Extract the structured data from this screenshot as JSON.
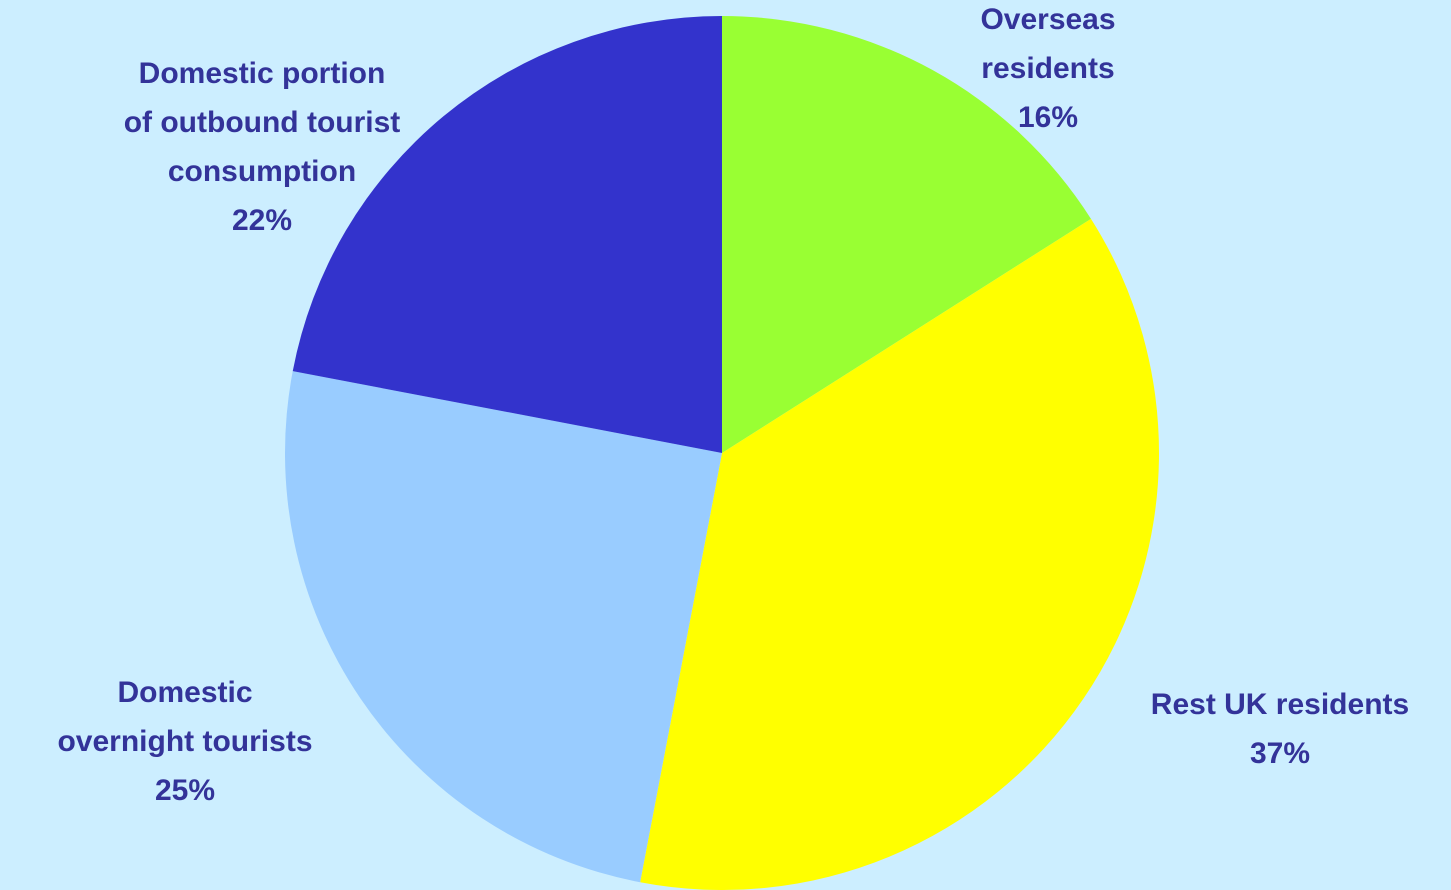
{
  "chart_data": {
    "type": "pie",
    "categories": [
      "Overseas\nresidents",
      "Rest UK residents",
      "Domestic\novernight tourists",
      "Domestic portion\nof outbound tourist\nconsumption"
    ],
    "values": [
      16,
      37,
      25,
      22
    ],
    "value_labels": [
      "16%",
      "37%",
      "25%",
      "22%"
    ],
    "colors": [
      "#99ff33",
      "#ffff00",
      "#99ccff",
      "#3333cc"
    ]
  }
}
